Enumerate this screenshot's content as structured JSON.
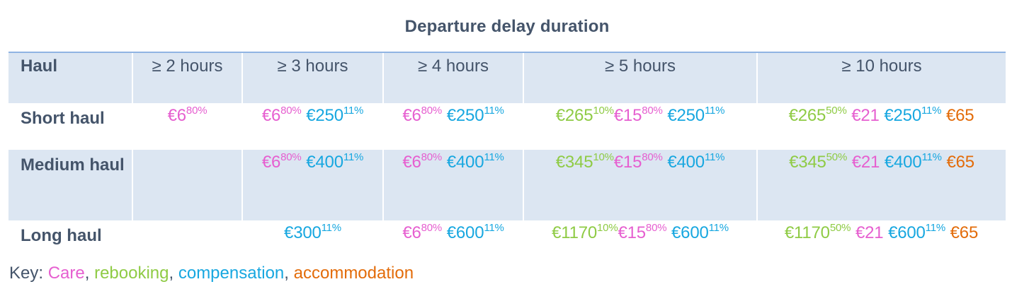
{
  "title": "Departure delay duration",
  "columns": [
    "Haul",
    "≥ 2 hours",
    "≥ 3 hours",
    "≥ 4 hours",
    "≥ 5 hours",
    "≥ 10 hours"
  ],
  "colors": {
    "care": "#e65fd0",
    "rebooking": "#8fcb45",
    "compensation": "#17a7e0",
    "accommodation": "#e36c0a",
    "text": "#44546a",
    "band": "#dce6f2"
  },
  "rows": [
    {
      "haul": "Short haul",
      "cells": [
        [
          {
            "type": "care",
            "amount": "€6",
            "pct": "80%"
          }
        ],
        [
          {
            "type": "care",
            "amount": "€6",
            "pct": "80%"
          },
          {
            "type": "compensation",
            "amount": "€250",
            "pct": "11%"
          }
        ],
        [
          {
            "type": "care",
            "amount": "€6",
            "pct": "80%"
          },
          {
            "type": "compensation",
            "amount": "€250",
            "pct": "11%"
          }
        ],
        [
          {
            "type": "rebooking",
            "amount": "€265",
            "pct": "10%"
          },
          {
            "type": "care",
            "amount": "€15",
            "pct": "80%"
          },
          {
            "type": "compensation",
            "amount": "€250",
            "pct": "11%"
          }
        ],
        [
          {
            "type": "rebooking",
            "amount": "€265",
            "pct": "50%"
          },
          {
            "type": "care",
            "amount": "€21",
            "pct": ""
          },
          {
            "type": "compensation",
            "amount": "€250",
            "pct": "11%"
          },
          {
            "type": "accommodation",
            "amount": "€65",
            "pct": ""
          }
        ]
      ]
    },
    {
      "haul": "Medium haul",
      "cells": [
        [],
        [
          {
            "type": "care",
            "amount": "€6",
            "pct": "80%"
          },
          {
            "type": "compensation",
            "amount": "€400",
            "pct": "11%"
          }
        ],
        [
          {
            "type": "care",
            "amount": "€6",
            "pct": "80%"
          },
          {
            "type": "compensation",
            "amount": "€400",
            "pct": "11%"
          }
        ],
        [
          {
            "type": "rebooking",
            "amount": "€345",
            "pct": "10%"
          },
          {
            "type": "care",
            "amount": "€15",
            "pct": "80%"
          },
          {
            "type": "compensation",
            "amount": "€400",
            "pct": "11%"
          }
        ],
        [
          {
            "type": "rebooking",
            "amount": "€345",
            "pct": "50%"
          },
          {
            "type": "care",
            "amount": "€21",
            "pct": ""
          },
          {
            "type": "compensation",
            "amount": "€400",
            "pct": "11%"
          },
          {
            "type": "accommodation",
            "amount": "€65",
            "pct": ""
          }
        ]
      ]
    },
    {
      "haul": "Long haul",
      "cells": [
        [],
        [
          {
            "type": "compensation",
            "amount": "€300",
            "pct": "11%"
          }
        ],
        [
          {
            "type": "care",
            "amount": "€6",
            "pct": "80%"
          },
          {
            "type": "compensation",
            "amount": "€600",
            "pct": "11%"
          }
        ],
        [
          {
            "type": "rebooking",
            "amount": "€1170",
            "pct": "10%"
          },
          {
            "type": "care",
            "amount": "€15",
            "pct": "80%"
          },
          {
            "type": "compensation",
            "amount": "€600",
            "pct": "11%"
          }
        ],
        [
          {
            "type": "rebooking",
            "amount": "€1170",
            "pct": "50%"
          },
          {
            "type": "care",
            "amount": "€21",
            "pct": ""
          },
          {
            "type": "compensation",
            "amount": "€600",
            "pct": "11%"
          },
          {
            "type": "accommodation",
            "amount": "€65",
            "pct": ""
          }
        ]
      ]
    }
  ],
  "key": {
    "label": "Key:",
    "items": [
      {
        "type": "care",
        "label": "Care"
      },
      {
        "type": "rebooking",
        "label": "rebooking"
      },
      {
        "type": "compensation",
        "label": "compensation"
      },
      {
        "type": "accommodation",
        "label": "accommodation"
      }
    ]
  }
}
